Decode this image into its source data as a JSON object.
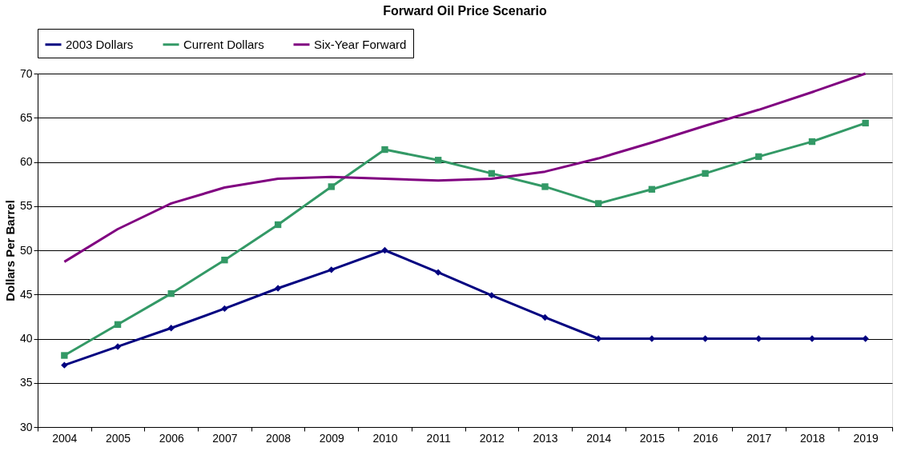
{
  "chart_data": {
    "type": "line",
    "title": "Forward Oil Price Scenario",
    "ylabel": "Dollars Per Barrel",
    "categories": [
      "2004",
      "2005",
      "2006",
      "2007",
      "2008",
      "2009",
      "2010",
      "2011",
      "2012",
      "2013",
      "2014",
      "2015",
      "2016",
      "2017",
      "2018",
      "2019"
    ],
    "series": [
      {
        "name": "2003 Dollars",
        "color": "#000080",
        "marker": "diamond",
        "values": [
          37,
          39.1,
          41.2,
          43.4,
          45.7,
          47.8,
          50,
          47.5,
          44.9,
          42.4,
          40,
          40,
          40,
          40,
          40,
          40
        ]
      },
      {
        "name": "Current Dollars",
        "color": "#339966",
        "marker": "square",
        "values": [
          38.1,
          41.6,
          45.1,
          48.9,
          52.9,
          57.2,
          61.4,
          60.2,
          58.7,
          57.2,
          55.3,
          56.9,
          58.7,
          60.6,
          62.3,
          64.4
        ]
      },
      {
        "name": "Six-Year Forward",
        "color": "#800080",
        "marker": "none",
        "values": [
          48.7,
          52.4,
          55.3,
          57.1,
          58.1,
          58.3,
          58.1,
          57.9,
          58.1,
          58.9,
          60.4,
          62.2,
          64.1,
          65.9,
          67.9,
          70
        ]
      }
    ],
    "ylim": [
      30,
      70
    ],
    "yticks": [
      30,
      35,
      40,
      45,
      50,
      55,
      60,
      65,
      70
    ],
    "grid": "y",
    "legend": "top"
  }
}
